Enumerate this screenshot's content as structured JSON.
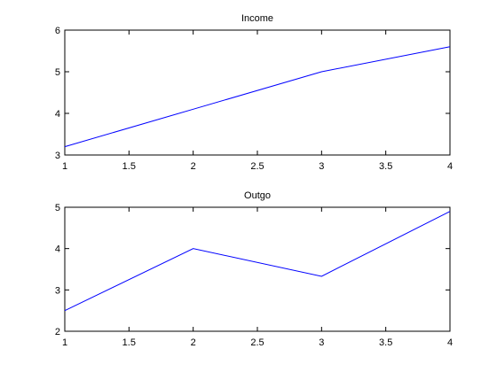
{
  "chart_data": [
    {
      "type": "line",
      "title": "Income",
      "xlabel": "",
      "ylabel": "",
      "x": [
        1,
        2,
        3,
        4
      ],
      "series": [
        {
          "values": [
            3.2,
            4.1,
            5.0,
            5.6
          ]
        }
      ],
      "xlim": [
        1,
        4
      ],
      "ylim": [
        3,
        6
      ],
      "xticks": [
        "1",
        "1.5",
        "2",
        "2.5",
        "3",
        "3.5",
        "4"
      ],
      "yticks": [
        "3",
        "4",
        "5",
        "6"
      ],
      "grid": false,
      "line_color": "#0000ff"
    },
    {
      "type": "line",
      "title": "Outgo",
      "xlabel": "",
      "ylabel": "",
      "x": [
        1,
        2,
        3,
        4
      ],
      "series": [
        {
          "values": [
            2.5,
            4.0,
            3.33,
            4.9
          ]
        }
      ],
      "xlim": [
        1,
        4
      ],
      "ylim": [
        2,
        5
      ],
      "xticks": [
        "1",
        "1.5",
        "2",
        "2.5",
        "3",
        "3.5",
        "4"
      ],
      "yticks": [
        "2",
        "3",
        "4",
        "5"
      ],
      "grid": false,
      "line_color": "#0000ff"
    }
  ]
}
